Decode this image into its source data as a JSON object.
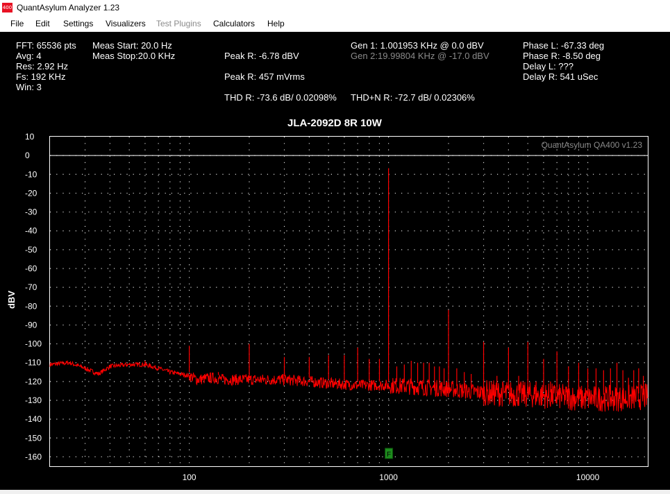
{
  "window": {
    "title": "QuantAsylum Analyzer 1.23",
    "icon_text": "400"
  },
  "menu": [
    {
      "label": "File",
      "enabled": true
    },
    {
      "label": "Edit",
      "enabled": true
    },
    {
      "label": "Settings",
      "enabled": true
    },
    {
      "label": "Visualizers",
      "enabled": true
    },
    {
      "label": "Test Plugins",
      "enabled": false
    },
    {
      "label": "Calculators",
      "enabled": true
    },
    {
      "label": "Help",
      "enabled": true
    }
  ],
  "info": {
    "fft": "FFT: 65536 pts",
    "avg": "Avg: 4",
    "res": "Res: 2.92 Hz",
    "fs": "Fs: 192 KHz",
    "win": "Win: 3",
    "meas_start": "Meas Start: 20.0 Hz",
    "meas_stop": "Meas Stop:20.0 KHz",
    "peak_r_dbv": "Peak R: -6.78 dBV",
    "peak_r_mvrms": "Peak R: 457 mVrms",
    "thd_r": "THD R: -73.6 dB/ 0.02098%",
    "gen1": "Gen 1: 1.001953 KHz @ 0.0  dBV",
    "gen2": "Gen 2:19.99804 KHz @ -17.0  dBV",
    "thdn_r": "THD+N R: -72.7 dB/ 0.02306%",
    "phase_l": "Phase L: -67.33 deg",
    "phase_r": "Phase R: -8.50 deg",
    "delay_l": "Delay L: ???",
    "delay_r": "Delay R: 541 uSec"
  },
  "colors": {
    "trace": "#ff0000",
    "grid": "#d8d8d8",
    "marker": "#1e8c1e",
    "background": "#000000"
  },
  "chart_data": {
    "type": "line",
    "title": "JLA-2092D 8R 10W",
    "watermark": "QuantAsylum QA400 v1.23",
    "ylabel": "dBV",
    "xlabel": "",
    "xscale": "log",
    "xlim": [
      20,
      20000
    ],
    "ylim": [
      -165,
      10
    ],
    "x_ticks": [
      100,
      1000,
      10000
    ],
    "x_tick_labels": [
      "100",
      "1000",
      "10000"
    ],
    "y_ticks": [
      10,
      0,
      -10,
      -20,
      -30,
      -40,
      -50,
      -60,
      -70,
      -80,
      -90,
      -100,
      -110,
      -120,
      -130,
      -140,
      -150,
      -160
    ],
    "y_tick_labels": [
      "10",
      "0",
      "-10",
      "-20",
      "-30",
      "-40",
      "-50",
      "-60",
      "-70",
      "-80",
      "-90",
      "-100",
      "-110",
      "-120",
      "-130",
      "-140",
      "-150",
      "-160"
    ],
    "grid": true,
    "reference_line_dbv": 0,
    "marker": {
      "label": "F",
      "x": 1000
    },
    "floor": [
      [
        20,
        -111
      ],
      [
        25,
        -110
      ],
      [
        30,
        -113
      ],
      [
        35,
        -116
      ],
      [
        40,
        -112
      ],
      [
        50,
        -111
      ],
      [
        60,
        -111
      ],
      [
        70,
        -113
      ],
      [
        80,
        -115
      ],
      [
        90,
        -116
      ],
      [
        100,
        -117
      ],
      [
        110,
        -119
      ],
      [
        130,
        -118
      ],
      [
        150,
        -119
      ],
      [
        200,
        -119
      ],
      [
        300,
        -119
      ],
      [
        400,
        -120
      ],
      [
        500,
        -121
      ],
      [
        700,
        -122
      ],
      [
        1000,
        -122
      ],
      [
        1500,
        -123
      ],
      [
        2000,
        -124
      ],
      [
        3000,
        -126
      ],
      [
        5000,
        -127
      ],
      [
        7000,
        -128
      ],
      [
        10000,
        -129
      ],
      [
        15000,
        -129
      ],
      [
        20000,
        -128
      ]
    ],
    "peaks": [
      [
        60,
        -112
      ],
      [
        100,
        -101
      ],
      [
        140,
        -115
      ],
      [
        200,
        -100
      ],
      [
        300,
        -107
      ],
      [
        400,
        -107
      ],
      [
        500,
        -106
      ],
      [
        600,
        -106
      ],
      [
        700,
        -102
      ],
      [
        800,
        -108
      ],
      [
        900,
        -108
      ],
      [
        1000,
        -6.78
      ],
      [
        1100,
        -112
      ],
      [
        1200,
        -111
      ],
      [
        1300,
        -109
      ],
      [
        1400,
        -110
      ],
      [
        1500,
        -110
      ],
      [
        1600,
        -110
      ],
      [
        1700,
        -112
      ],
      [
        1800,
        -112
      ],
      [
        1900,
        -113
      ],
      [
        2000,
        -82
      ],
      [
        2200,
        -113
      ],
      [
        2400,
        -115
      ],
      [
        2600,
        -116
      ],
      [
        3000,
        -99
      ],
      [
        3500,
        -117
      ],
      [
        4000,
        -102
      ],
      [
        4500,
        -117
      ],
      [
        5000,
        -99
      ],
      [
        5500,
        -120
      ],
      [
        6000,
        -108
      ],
      [
        6500,
        -120
      ],
      [
        7000,
        -104
      ],
      [
        8000,
        -112
      ],
      [
        9000,
        -110
      ],
      [
        10000,
        -113
      ],
      [
        11000,
        -113
      ],
      [
        12000,
        -114
      ],
      [
        13000,
        -113
      ],
      [
        14000,
        -110
      ],
      [
        15000,
        -114
      ],
      [
        16000,
        -118
      ],
      [
        17000,
        -114
      ],
      [
        18000,
        -113
      ],
      [
        19000,
        -117
      ]
    ]
  }
}
